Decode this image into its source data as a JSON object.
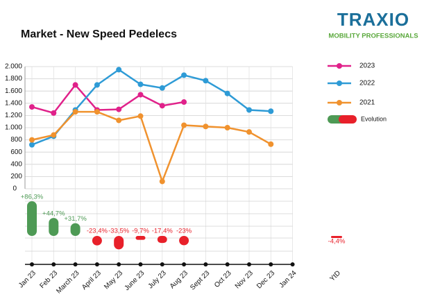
{
  "chart_data": {
    "type": "line",
    "title": "Market - New Speed Pedelecs",
    "logo": {
      "name": "TRAXIO",
      "tagline": "MOBILITY PROFESSIONALS"
    },
    "categories": [
      "Jan 23",
      "Feb 23",
      "March 23",
      "April 23",
      "May 23",
      "June 23",
      "July 23",
      "Aug 23",
      "Sept 23",
      "Oct 23",
      "Nov 23",
      "Dec 23",
      "Jan 24"
    ],
    "series": [
      {
        "name": "2023",
        "color": "#e0218a",
        "values": [
          1340,
          1240,
          1700,
          1290,
          1300,
          1540,
          1360,
          1420,
          null,
          null,
          null,
          null,
          null
        ]
      },
      {
        "name": "2022",
        "color": "#2e9bd6",
        "values": [
          720,
          860,
          1290,
          1700,
          1950,
          1710,
          1650,
          1860,
          1770,
          1560,
          1290,
          1270,
          null
        ]
      },
      {
        "name": "2021",
        "color": "#f0922e",
        "values": [
          800,
          880,
          1260,
          1260,
          1120,
          1190,
          120,
          1040,
          1020,
          1000,
          930,
          730,
          null
        ]
      }
    ],
    "ylim": [
      0,
      2000
    ],
    "yticks": [
      0,
      200,
      400,
      600,
      800,
      {
        "value": 1000,
        "label": "1.000"
      },
      {
        "value": 1200,
        "label": "1.200"
      },
      {
        "value": 1400,
        "label": "1.400"
      },
      {
        "value": 1600,
        "label": "1.600"
      },
      {
        "value": 1800,
        "label": "1.800"
      },
      {
        "value": 2000,
        "label": "2.000"
      }
    ],
    "grid": true,
    "evolution": {
      "name": "Evolution",
      "positive_color": "#4e9a55",
      "negative_color": "#e8202a",
      "values": [
        86.3,
        44.7,
        31.7,
        -23.4,
        -33.5,
        -9.7,
        -17.4,
        -23,
        null,
        null,
        null,
        null,
        null
      ],
      "value_labels": [
        "+86,3%",
        "+44,7%",
        "+31,7%",
        "-23,4%",
        "-33,5%",
        "-9,7%",
        "-17,4%",
        "-23%",
        null,
        null,
        null,
        null,
        null
      ],
      "ytd_label": "YtD",
      "ytd_value": -4.4,
      "ytd_value_label": "-4,4%"
    }
  }
}
